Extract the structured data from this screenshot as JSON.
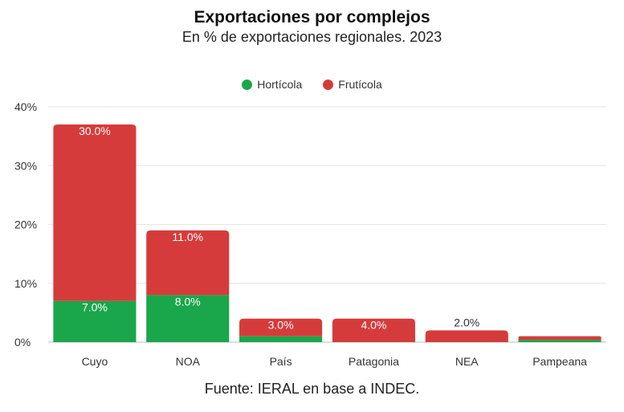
{
  "chart_data": {
    "type": "bar",
    "stacked": true,
    "title": "Exportaciones por complejos",
    "subtitle": "En % de exportaciones regionales. 2023",
    "source": "Fuente: IERAL en base a INDEC.",
    "categories": [
      "Cuyo",
      "NOA",
      "País",
      "Patagonia",
      "NEA",
      "Pampeana"
    ],
    "series": [
      {
        "name": "Hortícola",
        "color": "#1aa64a",
        "values": [
          7.0,
          8.0,
          1.0,
          0.0,
          0.0,
          0.4
        ],
        "labels": [
          "7.0%",
          "8.0%",
          "",
          "",
          "",
          ""
        ]
      },
      {
        "name": "Frutícola",
        "color": "#d63b3b",
        "values": [
          30.0,
          11.0,
          3.0,
          4.0,
          2.0,
          0.6
        ],
        "labels": [
          "30.0%",
          "11.0%",
          "3.0%",
          "4.0%",
          "2.0%",
          ""
        ]
      }
    ],
    "ylim": [
      0,
      40
    ],
    "yticks": [
      "0%",
      "10%",
      "20%",
      "30%",
      "40%"
    ],
    "grid": true,
    "legend": "top-center"
  }
}
